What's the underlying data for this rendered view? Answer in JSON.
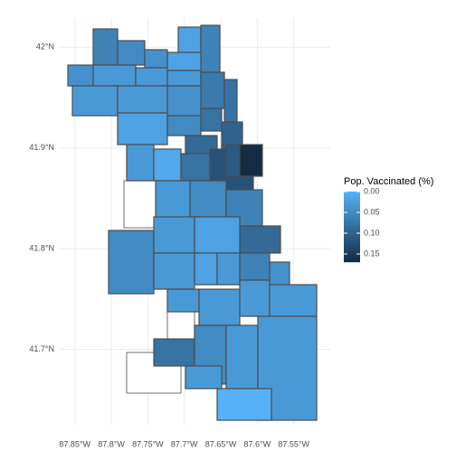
{
  "chart_data": {
    "type": "choropleth",
    "legend_title": "Pop. Vaccinated (%)",
    "low_color": "#56B1F7",
    "high_color": "#132B43",
    "values": [
      0.06,
      0.05,
      0.04,
      0.02,
      0.06,
      0.02,
      0.04,
      0.03,
      0.03,
      0.03,
      0.07,
      0.08,
      0.03,
      0.03,
      0.04,
      0.02,
      0.05,
      0.08,
      0.1,
      0.09,
      0.03,
      0.01,
      0.08,
      0.12,
      0.11,
      0.17,
      0.12,
      0.03,
      0.05,
      0.06,
      0.09,
      0.05,
      0.03,
      0.02,
      0.03,
      0.02,
      0.03,
      0.06,
      0.04,
      0.03,
      0.03,
      0.03,
      0.03,
      0.08,
      0.05,
      0.03,
      0.03,
      0.0,
      0.03
    ],
    "xlim": [
      -87.872,
      -87.5
    ],
    "ylim": [
      41.625,
      42.029
    ],
    "xticks": [
      {
        "value": -87.85,
        "label": "87.85°W"
      },
      {
        "value": -87.8,
        "label": "87.8°W"
      },
      {
        "value": -87.75,
        "label": "87.75°W"
      },
      {
        "value": -87.7,
        "label": "87.7°W"
      },
      {
        "value": -87.65,
        "label": "87.65°W"
      },
      {
        "value": -87.6,
        "label": "87.6°W"
      },
      {
        "value": -87.55,
        "label": "87.55°W"
      }
    ],
    "yticks": [
      {
        "value": 41.7,
        "label": "41.7°N"
      },
      {
        "value": 41.8,
        "label": "41.8°N"
      },
      {
        "value": 41.9,
        "label": "41.9°N"
      },
      {
        "value": 42,
        "label": "42°N"
      }
    ],
    "legend_ticks": [
      {
        "value": 0,
        "label": "0.00"
      },
      {
        "value": 0.05,
        "label": "0.05"
      },
      {
        "value": 0.1,
        "label": "0.10"
      },
      {
        "value": 0.15,
        "label": "0.15"
      }
    ],
    "grid": true
  }
}
